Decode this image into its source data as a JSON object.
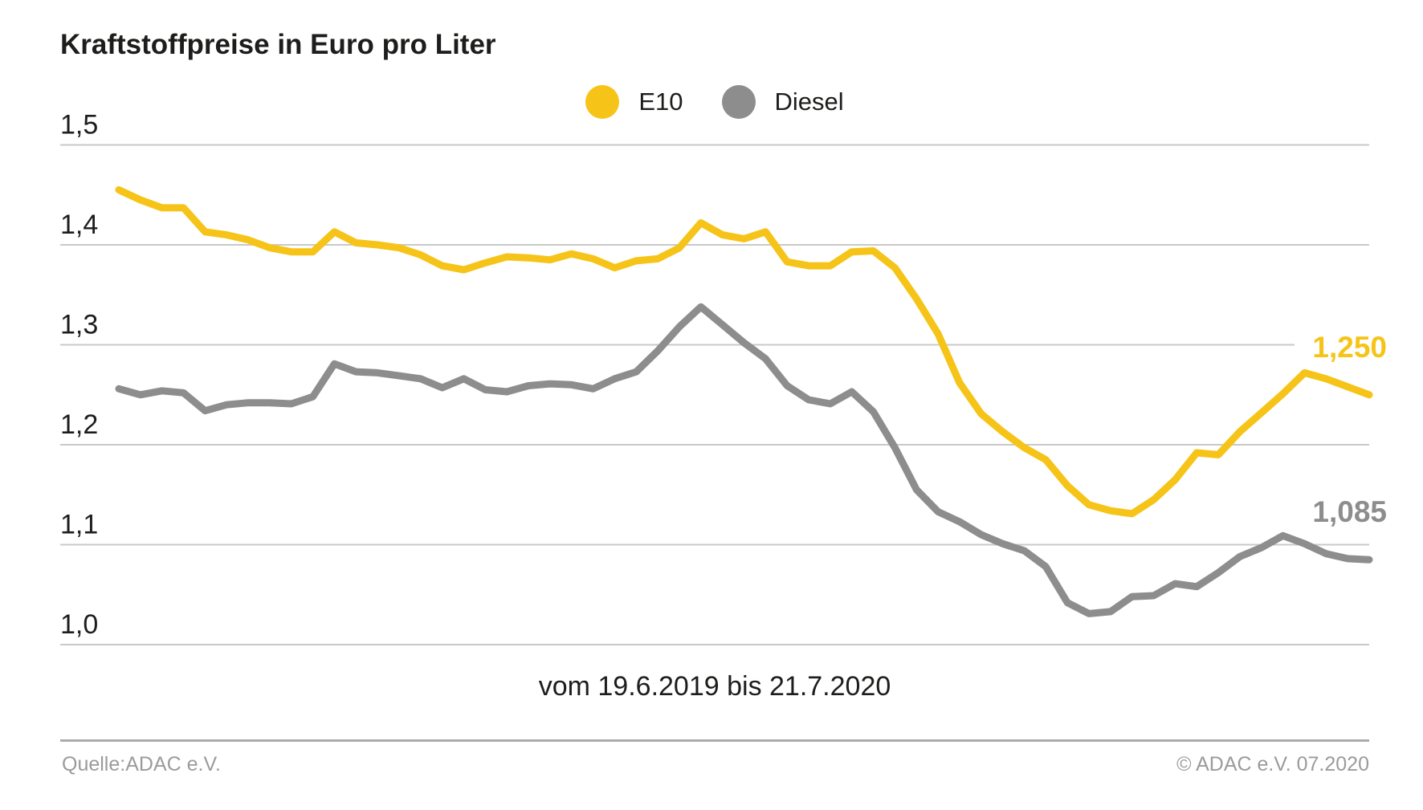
{
  "title": "Kraftstoffpreise in Euro pro Liter",
  "legend": {
    "items": [
      {
        "label": "E10",
        "color": "#f6c418"
      },
      {
        "label": "Diesel",
        "color": "#8d8d8d"
      }
    ]
  },
  "caption": "vom 19.6.2019 bis 21.7.2020",
  "footer": {
    "source": "Quelle:ADAC e.V.",
    "copyright": "© ADAC e.V. 07.2020"
  },
  "colors": {
    "e10": "#f6c418",
    "diesel": "#8d8d8d",
    "gridline": "#c9c9c9",
    "text": "#1d1d1b",
    "footer_text": "#9b9b9b",
    "divider": "#ababab",
    "background": "#ffffff"
  },
  "chart_data": {
    "type": "line",
    "title": "Kraftstoffpreise in Euro pro Liter",
    "xlabel": "vom 19.6.2019 bis 21.7.2020",
    "ylabel": "Euro pro Liter",
    "x_start": "19.6.2019",
    "x_end": "21.7.2020",
    "x_interval": "weekly",
    "ylim": [
      1.0,
      1.5
    ],
    "grid": "horizontal",
    "legend_position": "top-center",
    "yticks": [
      {
        "value": 1.5,
        "label": "1,5"
      },
      {
        "value": 1.4,
        "label": "1,4"
      },
      {
        "value": 1.3,
        "label": "1,3"
      },
      {
        "value": 1.2,
        "label": "1,2"
      },
      {
        "value": 1.1,
        "label": "1,1"
      },
      {
        "value": 1.0,
        "label": "1,0"
      }
    ],
    "series": [
      {
        "name": "E10",
        "color": "#f6c418",
        "end_label": "1,250",
        "end_value": 1.25,
        "values": [
          1.455,
          1.445,
          1.437,
          1.437,
          1.413,
          1.41,
          1.405,
          1.397,
          1.393,
          1.393,
          1.413,
          1.402,
          1.4,
          1.397,
          1.39,
          1.379,
          1.375,
          1.382,
          1.388,
          1.387,
          1.385,
          1.391,
          1.386,
          1.377,
          1.384,
          1.386,
          1.397,
          1.422,
          1.41,
          1.406,
          1.413,
          1.383,
          1.379,
          1.379,
          1.393,
          1.394,
          1.377,
          1.346,
          1.311,
          1.262,
          1.231,
          1.213,
          1.197,
          1.185,
          1.159,
          1.14,
          1.134,
          1.131,
          1.145,
          1.165,
          1.192,
          1.19,
          1.213,
          1.232,
          1.251,
          1.272,
          1.266,
          1.258,
          1.25
        ]
      },
      {
        "name": "Diesel",
        "color": "#8d8d8d",
        "end_label": "1,085",
        "end_value": 1.085,
        "values": [
          1.256,
          1.25,
          1.254,
          1.252,
          1.234,
          1.24,
          1.242,
          1.242,
          1.241,
          1.248,
          1.281,
          1.273,
          1.272,
          1.269,
          1.266,
          1.257,
          1.266,
          1.255,
          1.253,
          1.259,
          1.261,
          1.26,
          1.256,
          1.266,
          1.273,
          1.294,
          1.318,
          1.338,
          1.32,
          1.302,
          1.286,
          1.259,
          1.245,
          1.241,
          1.253,
          1.233,
          1.197,
          1.155,
          1.133,
          1.123,
          1.11,
          1.101,
          1.094,
          1.078,
          1.042,
          1.031,
          1.033,
          1.048,
          1.049,
          1.061,
          1.058,
          1.072,
          1.088,
          1.097,
          1.109,
          1.101,
          1.091,
          1.086,
          1.085
        ]
      }
    ]
  }
}
